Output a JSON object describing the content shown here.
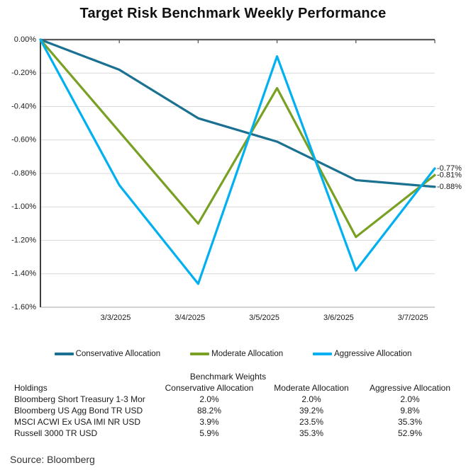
{
  "title": "Target Risk Benchmark Weekly Performance",
  "source": "Source: Bloomberg",
  "chart_data": {
    "type": "line",
    "title": "Target Risk Benchmark Weekly Performance",
    "x_categories": [
      "",
      "3/3/2025",
      "3/4/2025",
      "3/5/2025",
      "3/6/2025",
      "3/7/2025"
    ],
    "y_ticks": [
      "0.00%",
      "-0.20%",
      "-0.40%",
      "-0.60%",
      "-0.80%",
      "-1.00%",
      "-1.20%",
      "-1.40%",
      "-1.60%"
    ],
    "ylim": [
      -1.6,
      0
    ],
    "unit": "%",
    "grid": true,
    "legend_position": "bottom",
    "series": [
      {
        "name": "Conservative Allocation",
        "color": "#1b7191",
        "values": [
          0,
          -0.18,
          -0.47,
          -0.61,
          -0.84,
          -0.88
        ],
        "end_label": "-0.88%"
      },
      {
        "name": "Moderate Allocation",
        "color": "#78a022",
        "values": [
          0,
          -0.55,
          -1.1,
          -0.29,
          -1.18,
          -0.81
        ],
        "end_label": "-0.81%"
      },
      {
        "name": "Aggressive Allocation",
        "color": "#00b0f0",
        "values": [
          0,
          -0.87,
          -1.46,
          -0.1,
          -1.38,
          -0.77
        ],
        "end_label": "-0.77%"
      }
    ],
    "colors": {
      "gridline": "#d9d9d9",
      "zero_line": "#595959",
      "axis": "#404040",
      "bottom_line": "#a6a6a6",
      "tick_text": "#1a1a1a"
    }
  },
  "table": {
    "group_header": "Benchmark Weights",
    "columns": [
      "Holdings",
      "Conservative Allocation",
      "Moderate Allocation",
      "Aggressive Allocation"
    ],
    "rows": [
      [
        "Bloomberg Short Treasury 1-3 Mor",
        "2.0%",
        "2.0%",
        "2.0%"
      ],
      [
        "Bloomberg US Agg Bond TR USD",
        "88.2%",
        "39.2%",
        "9.8%"
      ],
      [
        "MSCI ACWI Ex USA IMI NR USD",
        "3.9%",
        "23.5%",
        "35.3%"
      ],
      [
        "Russell 3000 TR USD",
        "5.9%",
        "35.3%",
        "52.9%"
      ]
    ]
  }
}
